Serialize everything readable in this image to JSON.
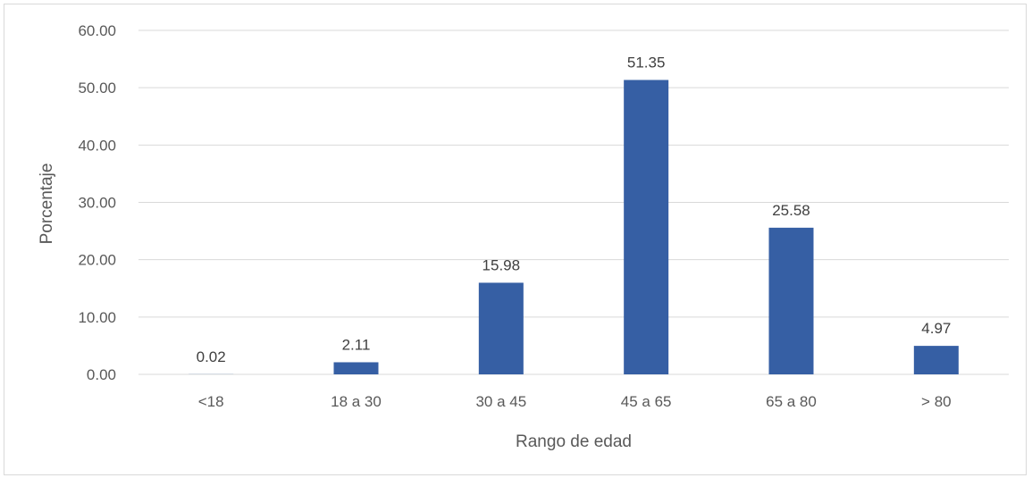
{
  "chart_data": {
    "type": "bar",
    "title": "",
    "xlabel": "Rango de edad",
    "ylabel": "Porcentaje",
    "categories": [
      "<18",
      "18 a 30",
      "30 a 45",
      "45 a 65",
      "65 a 80",
      "> 80"
    ],
    "values": [
      0.02,
      2.11,
      15.98,
      51.35,
      25.58,
      4.97
    ],
    "data_labels": [
      "0.02",
      "2.11",
      "15.98",
      "51.35",
      "25.58",
      "4.97"
    ],
    "ylim": [
      0,
      60
    ],
    "yticks": [
      "0.00",
      "10.00",
      "20.00",
      "30.00",
      "40.00",
      "50.00",
      "60.00"
    ],
    "grid": true,
    "legend": "none",
    "colors": {
      "bar": "#365fa4",
      "grid": "#d9d9d9"
    }
  }
}
